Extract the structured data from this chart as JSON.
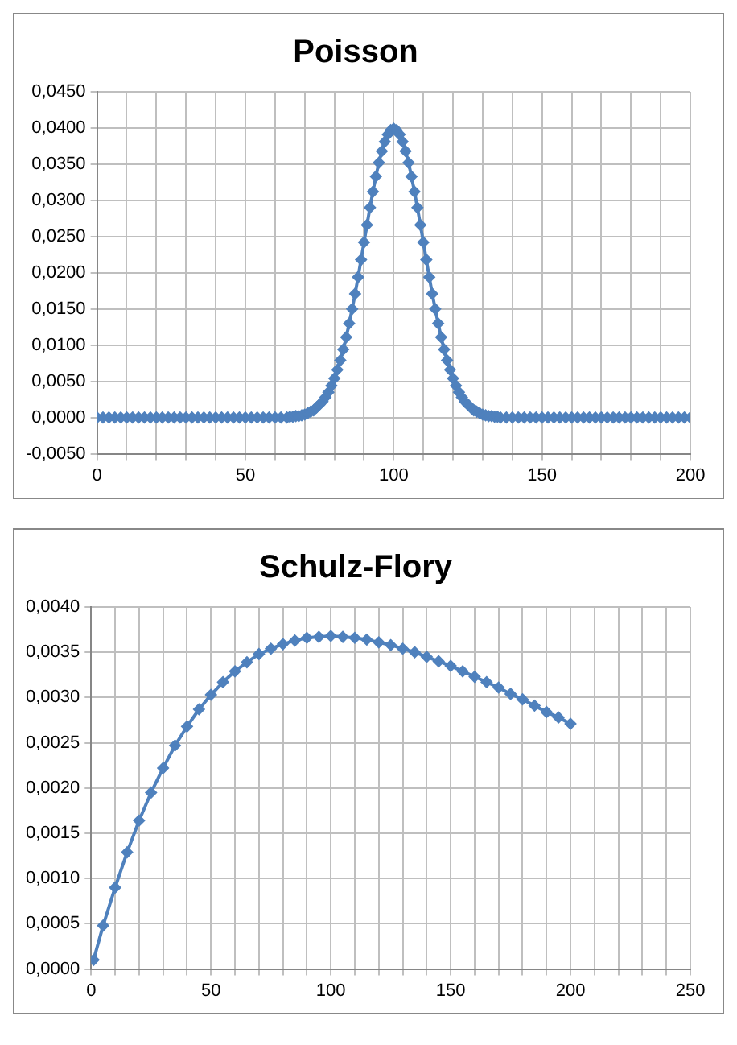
{
  "chart_data": [
    {
      "type": "line",
      "title": "Poisson",
      "marker": "diamond",
      "grid": true,
      "legend": false,
      "xlim": [
        0,
        200
      ],
      "ylim": [
        -0.005,
        0.045
      ],
      "xticks": [
        0,
        {
          "value": 10,
          "label": null
        },
        {
          "value": 20,
          "label": null
        },
        {
          "value": 30,
          "label": null
        },
        {
          "value": 40,
          "label": null
        },
        50,
        {
          "value": 60,
          "label": null
        },
        {
          "value": 70,
          "label": null
        },
        {
          "value": 80,
          "label": null
        },
        {
          "value": 90,
          "label": null
        },
        100,
        {
          "value": 110,
          "label": null
        },
        {
          "value": 120,
          "label": null
        },
        {
          "value": 130,
          "label": null
        },
        {
          "value": 140,
          "label": null
        },
        150,
        {
          "value": 160,
          "label": null
        },
        {
          "value": 170,
          "label": null
        },
        {
          "value": 180,
          "label": null
        },
        {
          "value": 190,
          "label": null
        },
        200
      ],
      "yticks": [
        {
          "value": -0.005,
          "label": "-0,0050"
        },
        {
          "value": 0,
          "label": "0,0000"
        },
        {
          "value": 0.005,
          "label": "0,0050"
        },
        {
          "value": 0.01,
          "label": "0,0100"
        },
        {
          "value": 0.015,
          "label": "0,0150"
        },
        {
          "value": 0.02,
          "label": "0,0200"
        },
        {
          "value": 0.025,
          "label": "0,0250"
        },
        {
          "value": 0.03,
          "label": "0,0300"
        },
        {
          "value": 0.035,
          "label": "0,0350"
        },
        {
          "value": 0.04,
          "label": "0,0400"
        },
        {
          "value": 0.045,
          "label": "0,0450"
        }
      ],
      "series": [
        {
          "color": "#4f81bd",
          "x": [
            0,
            2,
            4,
            6,
            8,
            10,
            12,
            14,
            16,
            18,
            20,
            22,
            24,
            26,
            28,
            30,
            32,
            34,
            36,
            38,
            40,
            42,
            44,
            46,
            48,
            50,
            52,
            54,
            56,
            58,
            60,
            62,
            64,
            65,
            66,
            67,
            68,
            69,
            70,
            71,
            72,
            73,
            74,
            75,
            76,
            77,
            78,
            79,
            80,
            81,
            82,
            83,
            84,
            85,
            86,
            87,
            88,
            89,
            90,
            91,
            92,
            93,
            94,
            95,
            96,
            97,
            98,
            99,
            100,
            101,
            102,
            103,
            104,
            105,
            106,
            107,
            108,
            109,
            110,
            111,
            112,
            113,
            114,
            115,
            116,
            117,
            118,
            119,
            120,
            121,
            122,
            123,
            124,
            125,
            126,
            127,
            128,
            129,
            130,
            131,
            132,
            133,
            134,
            135,
            136,
            138,
            140,
            142,
            144,
            146,
            148,
            150,
            152,
            154,
            156,
            158,
            160,
            162,
            164,
            166,
            168,
            170,
            172,
            174,
            176,
            178,
            180,
            182,
            184,
            186,
            188,
            190,
            192,
            194,
            196,
            198,
            200
          ],
          "values": [
            0,
            0,
            0,
            0,
            0,
            0,
            0,
            0,
            0,
            0,
            0,
            0,
            0,
            0,
            0,
            0,
            0,
            0,
            0,
            0,
            0,
            0,
            0,
            0,
            0,
            0,
            0,
            0,
            0,
            0,
            0,
            0,
            0,
            0.0001,
            0.0001,
            0.0002,
            0.0002,
            0.0003,
            0.0004,
            0.0006,
            0.0008,
            0.001,
            0.0014,
            0.0018,
            0.0022,
            0.0028,
            0.0035,
            0.0044,
            0.0054,
            0.0066,
            0.0079,
            0.0094,
            0.0111,
            0.013,
            0.015,
            0.0171,
            0.0194,
            0.0218,
            0.0242,
            0.0266,
            0.029,
            0.0312,
            0.0333,
            0.0352,
            0.0368,
            0.0381,
            0.0391,
            0.0397,
            0.0399,
            0.0397,
            0.0391,
            0.0381,
            0.0368,
            0.0352,
            0.0333,
            0.0312,
            0.029,
            0.0266,
            0.0242,
            0.0218,
            0.0194,
            0.0171,
            0.015,
            0.013,
            0.0111,
            0.0094,
            0.0079,
            0.0066,
            0.0054,
            0.0044,
            0.0035,
            0.0028,
            0.0022,
            0.0018,
            0.0014,
            0.001,
            0.0008,
            0.0006,
            0.0004,
            0.0003,
            0.0002,
            0.0002,
            0.0001,
            0.0001,
            0,
            0,
            0,
            0,
            0,
            0,
            0,
            0,
            0,
            0,
            0,
            0,
            0,
            0,
            0,
            0,
            0,
            0,
            0,
            0,
            0,
            0,
            0,
            0,
            0,
            0,
            0,
            0,
            0,
            0,
            0,
            0,
            0
          ]
        }
      ]
    },
    {
      "type": "line",
      "title": "Schulz-Flory",
      "marker": "diamond",
      "grid": true,
      "legend": false,
      "xlim": [
        0,
        250
      ],
      "ylim": [
        0,
        0.004
      ],
      "xticks": [
        0,
        {
          "value": 10,
          "label": null
        },
        {
          "value": 20,
          "label": null
        },
        {
          "value": 30,
          "label": null
        },
        {
          "value": 40,
          "label": null
        },
        50,
        {
          "value": 60,
          "label": null
        },
        {
          "value": 70,
          "label": null
        },
        {
          "value": 80,
          "label": null
        },
        {
          "value": 90,
          "label": null
        },
        100,
        {
          "value": 110,
          "label": null
        },
        {
          "value": 120,
          "label": null
        },
        {
          "value": 130,
          "label": null
        },
        {
          "value": 140,
          "label": null
        },
        150,
        {
          "value": 160,
          "label": null
        },
        {
          "value": 170,
          "label": null
        },
        {
          "value": 180,
          "label": null
        },
        {
          "value": 190,
          "label": null
        },
        200,
        {
          "value": 210,
          "label": null
        },
        {
          "value": 220,
          "label": null
        },
        {
          "value": 230,
          "label": null
        },
        {
          "value": 240,
          "label": null
        },
        250
      ],
      "yticks": [
        {
          "value": 0,
          "label": "0,0000"
        },
        {
          "value": 0.0005,
          "label": "0,0005"
        },
        {
          "value": 0.001,
          "label": "0,0010"
        },
        {
          "value": 0.0015,
          "label": "0,0015"
        },
        {
          "value": 0.002,
          "label": "0,0020"
        },
        {
          "value": 0.0025,
          "label": "0,0025"
        },
        {
          "value": 0.003,
          "label": "0,0030"
        },
        {
          "value": 0.0035,
          "label": "0,0035"
        },
        {
          "value": 0.004,
          "label": "0,0040"
        }
      ],
      "series": [
        {
          "color": "#4f81bd",
          "x": [
            1,
            5,
            10,
            15,
            20,
            25,
            30,
            35,
            40,
            45,
            50,
            55,
            60,
            65,
            70,
            75,
            80,
            85,
            90,
            95,
            100,
            105,
            110,
            115,
            120,
            125,
            130,
            135,
            140,
            145,
            150,
            155,
            160,
            165,
            170,
            175,
            180,
            185,
            190,
            195,
            200
          ],
          "values": [
            0.0001,
            0.00048,
            0.0009,
            0.00129,
            0.00164,
            0.00195,
            0.00222,
            0.00247,
            0.00268,
            0.00287,
            0.00303,
            0.00317,
            0.00329,
            0.00339,
            0.00348,
            0.00354,
            0.00359,
            0.00363,
            0.00366,
            0.00367,
            0.00368,
            0.00367,
            0.00366,
            0.00364,
            0.00361,
            0.00358,
            0.00354,
            0.0035,
            0.00345,
            0.0034,
            0.00335,
            0.00329,
            0.00323,
            0.00317,
            0.00311,
            0.00304,
            0.00298,
            0.00291,
            0.00284,
            0.00278,
            0.00271
          ]
        }
      ]
    }
  ]
}
